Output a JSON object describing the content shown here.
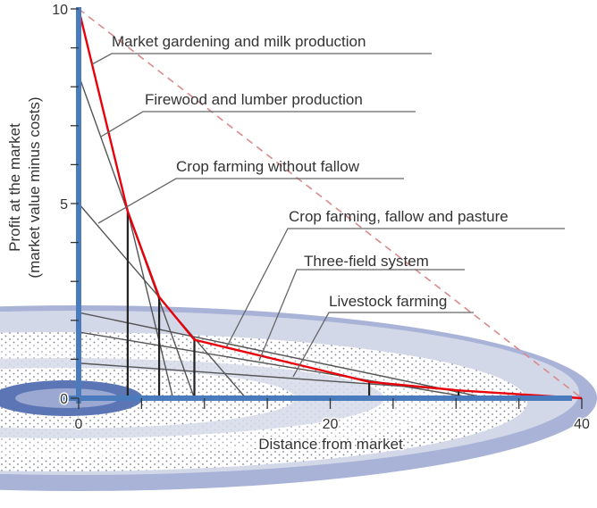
{
  "chart_data": {
    "type": "line",
    "xlabel": "Distance from market",
    "ylabel": [
      "Profit at the market",
      "(market value minus costs)"
    ],
    "xlim": [
      0,
      40
    ],
    "ylim": [
      0,
      10
    ],
    "x_ticks": [
      0,
      5,
      10,
      15,
      20,
      25,
      30,
      35,
      40
    ],
    "x_tick_labels": [
      {
        "v": 0,
        "t": "0"
      },
      {
        "v": 20,
        "t": "20"
      },
      {
        "v": 40,
        "t": "40"
      }
    ],
    "y_ticks": [
      0,
      1,
      2,
      3,
      4,
      5,
      6,
      7,
      8,
      9,
      10
    ],
    "y_tick_labels": [
      {
        "v": 0,
        "t": "0"
      },
      {
        "v": 5,
        "t": "5"
      },
      {
        "v": 10,
        "t": "10"
      }
    ],
    "series": [
      {
        "name": "Market gardening and milk production",
        "points": [
          [
            0,
            10
          ],
          [
            7.5,
            0
          ]
        ]
      },
      {
        "name": "Firewood and lumber production",
        "points": [
          [
            0,
            8.3
          ],
          [
            9.2,
            0
          ]
        ]
      },
      {
        "name": "Crop farming without fallow",
        "points": [
          [
            0,
            5
          ],
          [
            13.3,
            0
          ]
        ]
      },
      {
        "name": "Crop farming, fallow and pasture",
        "points": [
          [
            0,
            2.2
          ],
          [
            32.5,
            0
          ]
        ]
      },
      {
        "name": "Three-field system",
        "points": [
          [
            0,
            1.7
          ],
          [
            31.5,
            0
          ]
        ]
      },
      {
        "name": "Livestock farming",
        "points": [
          [
            0,
            0.9
          ],
          [
            39,
            0
          ]
        ]
      }
    ],
    "envelope": [
      [
        0,
        10
      ],
      [
        3.9,
        4.8
      ],
      [
        6.4,
        2.6
      ],
      [
        9.2,
        1.5
      ],
      [
        23.1,
        0.42
      ],
      [
        30.2,
        0.2
      ],
      [
        40,
        0
      ]
    ],
    "zone_boundaries": [
      3.9,
      6.4,
      9.2,
      23.1,
      30.2
    ],
    "dashed_reference": [
      [
        0,
        10
      ],
      [
        40,
        0
      ]
    ],
    "colors": {
      "axis": "#4a7bbd",
      "envelope": "#e8000b",
      "dashed": "#d98a8a",
      "lines": "#555555",
      "ring_outer": "#a9b3d8",
      "ring_light": "#d3d8e8",
      "ring_dark": "#5b75b5"
    }
  }
}
